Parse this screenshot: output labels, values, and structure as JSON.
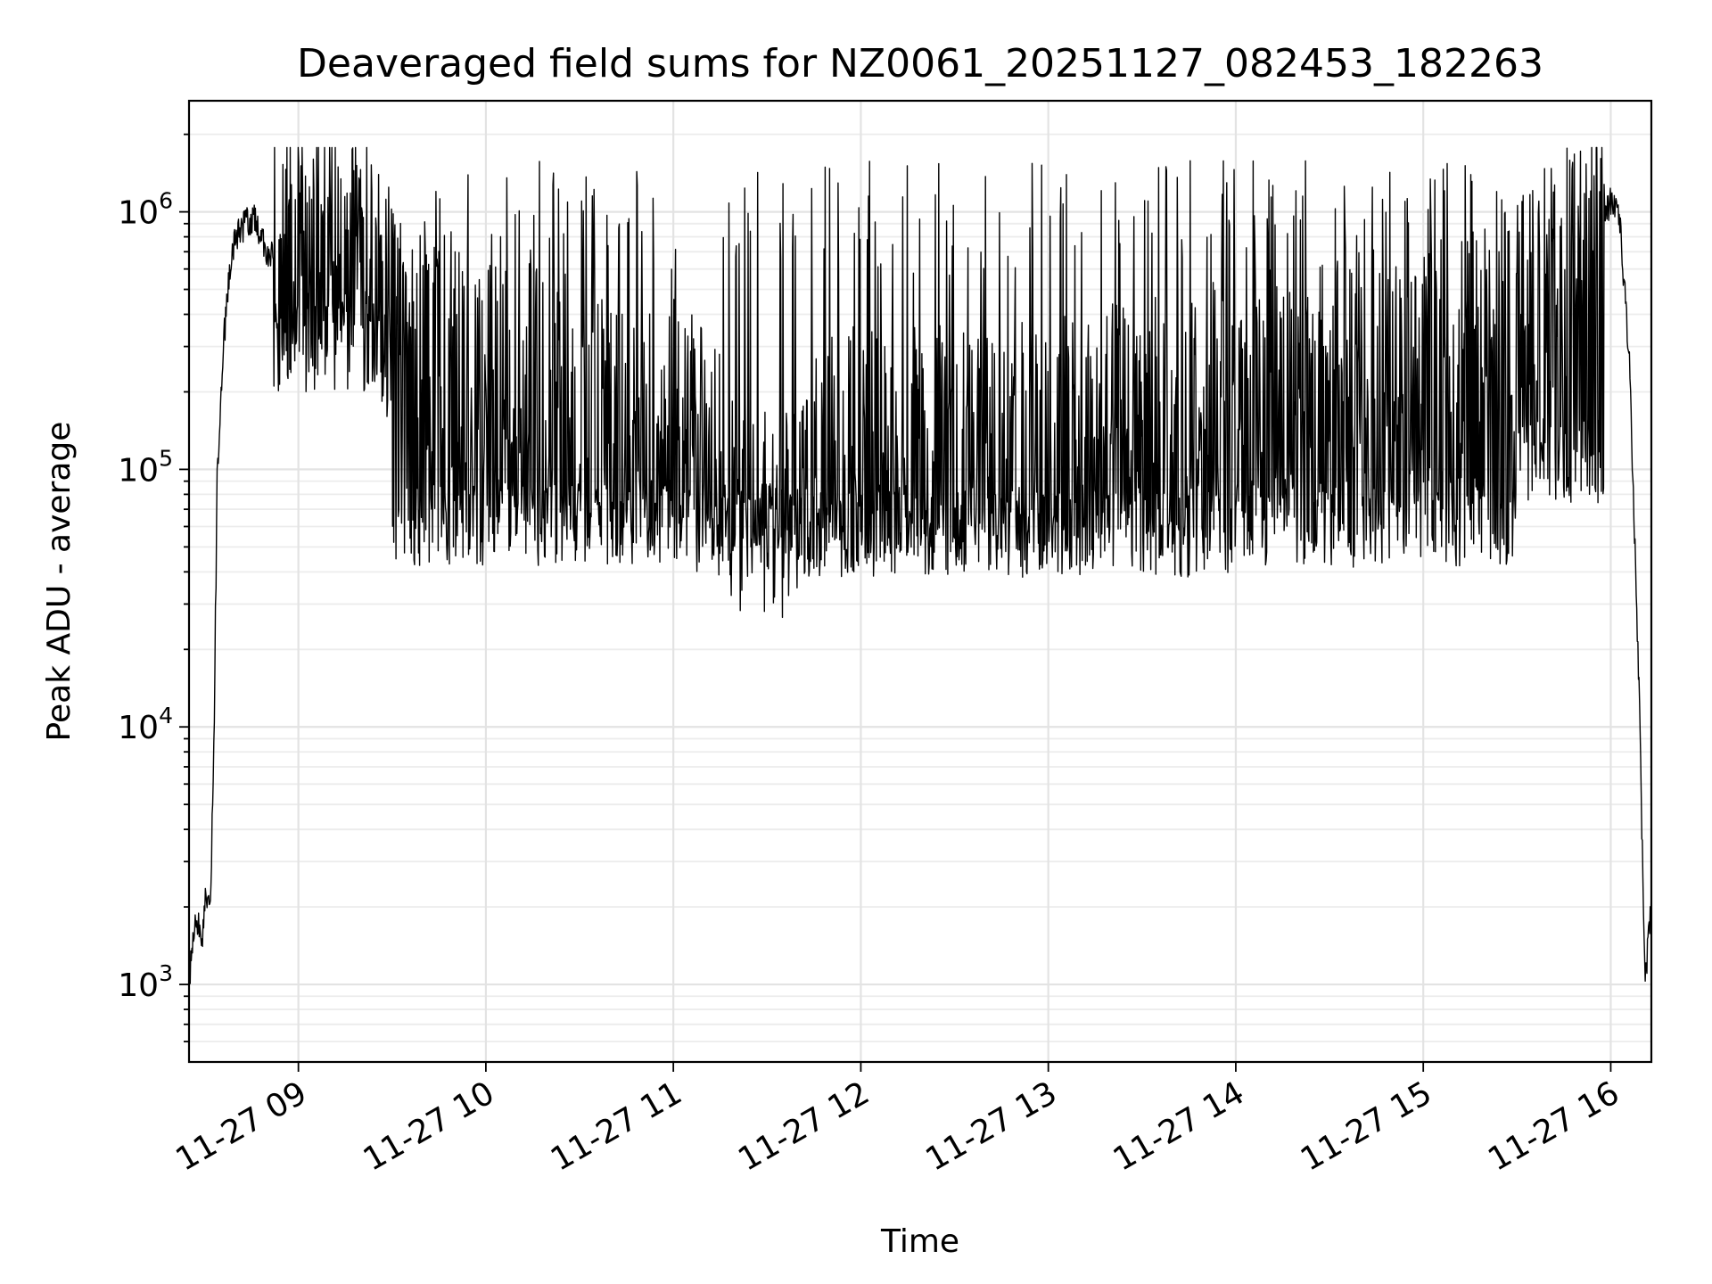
{
  "chart_data": {
    "type": "line",
    "title": "Deaveraged field sums for NZ0061_20251127_082453_182263",
    "xlabel": "Time",
    "ylabel": "Peak ADU - average",
    "yscale": "log",
    "xlim": [
      "2025-11-27 08:25",
      "2025-11-27 16:13"
    ],
    "ylim": [
      500,
      2700000
    ],
    "grid": true,
    "x_ticks": [
      {
        "value": "2025-11-27 09:00",
        "label": "11-27 09"
      },
      {
        "value": "2025-11-27 10:00",
        "label": "11-27 10"
      },
      {
        "value": "2025-11-27 11:00",
        "label": "11-27 11"
      },
      {
        "value": "2025-11-27 12:00",
        "label": "11-27 12"
      },
      {
        "value": "2025-11-27 13:00",
        "label": "11-27 13"
      },
      {
        "value": "2025-11-27 14:00",
        "label": "11-27 14"
      },
      {
        "value": "2025-11-27 15:00",
        "label": "11-27 15"
      },
      {
        "value": "2025-11-27 16:00",
        "label": "11-27 16"
      }
    ],
    "y_ticks": [
      {
        "value": 1000,
        "base": "10",
        "exp": "3"
      },
      {
        "value": 10000,
        "base": "10",
        "exp": "4"
      },
      {
        "value": 100000,
        "base": "10",
        "exp": "5"
      },
      {
        "value": 1000000,
        "base": "10",
        "exp": "6"
      }
    ],
    "series": [
      {
        "color": "#000000",
        "points": [
          [
            "2025-11-27 08:25",
            1000
          ],
          [
            "2025-11-27 08:26",
            1500
          ],
          [
            "2025-11-27 08:28",
            1800
          ],
          [
            "2025-11-27 08:29",
            1300
          ],
          [
            "2025-11-27 08:30",
            2200
          ],
          [
            "2025-11-27 08:31",
            1900
          ],
          [
            "2025-11-27 08:32",
            2500
          ],
          [
            "2025-11-27 08:33",
            9000
          ],
          [
            "2025-11-27 08:34",
            90000
          ],
          [
            "2025-11-27 08:36",
            300000
          ],
          [
            "2025-11-27 08:38",
            600000
          ],
          [
            "2025-11-27 08:40",
            800000
          ],
          [
            "2025-11-27 08:43",
            900000
          ],
          [
            "2025-11-27 08:46",
            930000
          ],
          [
            "2025-11-27 08:50",
            700000
          ],
          [
            "2025-11-27 09:00",
            600000
          ],
          [
            "2025-11-27 09:15",
            700000
          ],
          [
            "2025-11-27 09:30",
            250000
          ],
          [
            "2025-11-27 09:45",
            200000
          ],
          [
            "2025-11-27 10:00",
            150000
          ],
          [
            "2025-11-27 10:15",
            130000
          ],
          [
            "2025-11-27 10:30",
            120000
          ],
          [
            "2025-11-27 10:45",
            100000
          ],
          [
            "2025-11-27 11:00",
            110000
          ],
          [
            "2025-11-27 11:10",
            90000
          ],
          [
            "2025-11-27 11:20",
            50000
          ],
          [
            "2025-11-27 11:35",
            45000
          ],
          [
            "2025-11-27 11:45",
            80000
          ],
          [
            "2025-11-27 12:00",
            90000
          ],
          [
            "2025-11-27 12:30",
            85000
          ],
          [
            "2025-11-27 13:00",
            90000
          ],
          [
            "2025-11-27 13:30",
            110000
          ],
          [
            "2025-11-27 14:00",
            130000
          ],
          [
            "2025-11-27 14:30",
            150000
          ],
          [
            "2025-11-27 15:00",
            160000
          ],
          [
            "2025-11-27 15:30",
            250000
          ],
          [
            "2025-11-27 15:45",
            400000
          ],
          [
            "2025-11-27 15:55",
            800000
          ],
          [
            "2025-11-27 16:00",
            1100000
          ],
          [
            "2025-11-27 16:03",
            900000
          ],
          [
            "2025-11-27 16:06",
            250000
          ],
          [
            "2025-11-27 16:09",
            15000
          ],
          [
            "2025-11-27 16:11",
            1000
          ],
          [
            "2025-11-27 16:13",
            2200
          ]
        ]
      }
    ]
  }
}
